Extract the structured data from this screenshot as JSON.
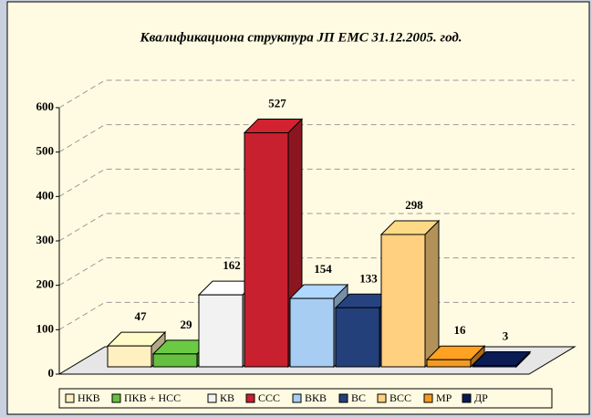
{
  "chart_data": {
    "type": "bar3d",
    "title": "Квалификациона структура ЈП ЕМС 31.12.2005. год.",
    "categories": [
      "НКВ",
      "ПКВ + НСС",
      "КВ",
      "ССС",
      "ВКВ",
      "ВС",
      "ВСС",
      "МР",
      "ДР"
    ],
    "values": [
      47,
      29,
      162,
      527,
      154,
      133,
      298,
      16,
      3
    ],
    "colors": [
      "#fff0c0",
      "#66c040",
      "#f2f2f2",
      "#c8202e",
      "#a8cdf2",
      "#24407a",
      "#ffd080",
      "#f59a20",
      "#0a1a50"
    ],
    "ylim": [
      0,
      600
    ],
    "yticks": [
      0,
      100,
      200,
      300,
      400,
      500,
      600
    ],
    "grid": true
  }
}
